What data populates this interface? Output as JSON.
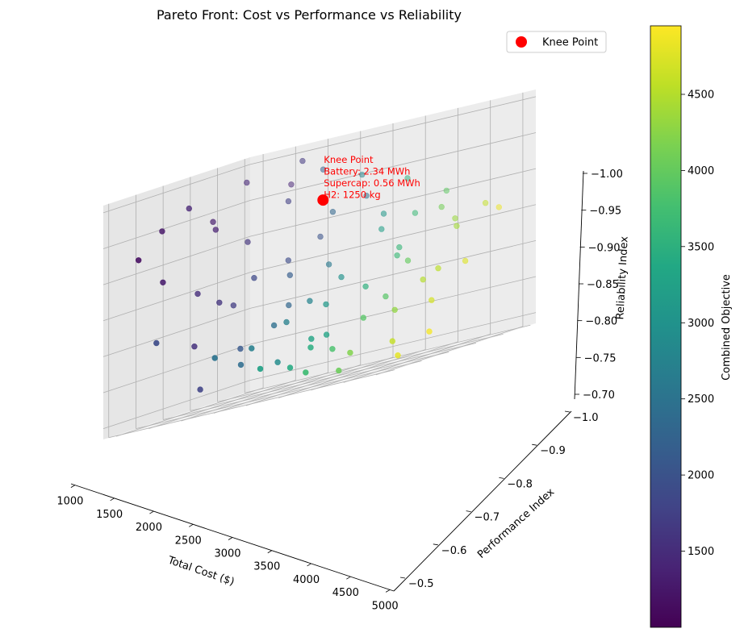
{
  "chart_data": {
    "type": "scatter",
    "projection": "3d",
    "title": "Pareto Front: Cost vs Performance vs Reliability",
    "xlabel": "Total Cost ($)",
    "ylabel": "Performance Index",
    "zlabel": "Reliability Index",
    "xlim": [
      800,
      5200
    ],
    "ylim": [
      -0.48,
      -1.02
    ],
    "zlim": [
      -0.685,
      -1.01
    ],
    "x_ticks": [
      1000,
      1500,
      2000,
      2500,
      3000,
      3500,
      4000,
      4500,
      5000
    ],
    "y_ticks": [
      -0.5,
      -0.6,
      -0.7,
      -0.8,
      -0.9,
      -1.0
    ],
    "z_ticks": [
      -0.7,
      -0.75,
      -0.8,
      -0.85,
      -0.9,
      -0.95,
      -1.0
    ],
    "x_tick_labels": [
      "1000",
      "1500",
      "2000",
      "2500",
      "3000",
      "3500",
      "4000",
      "4500",
      "5000"
    ],
    "y_tick_labels": [
      "−0.5",
      "−0.6",
      "−0.7",
      "−0.8",
      "−0.9",
      "−1.0"
    ],
    "z_tick_labels": [
      "−0.70",
      "−0.75",
      "−0.80",
      "−0.85",
      "−0.90",
      "−0.95",
      "−1.00"
    ],
    "grid": true,
    "legend": {
      "position": "upper-right",
      "entries": [
        "Knee Point"
      ]
    },
    "colorbar": {
      "label": "Combined Objective",
      "range": [
        1000,
        4950
      ],
      "colormap": "viridis",
      "ticks": [
        1500,
        2000,
        2500,
        3000,
        3500,
        4000,
        4500
      ],
      "tick_labels": [
        "1500",
        "2000",
        "2500",
        "3000",
        "3500",
        "4000",
        "4500"
      ]
    },
    "points": [
      {
        "cost": 1050,
        "perf": -0.55,
        "rel": -0.92,
        "obj": 1150
      },
      {
        "cost": 1120,
        "perf": -0.62,
        "rel": -0.95,
        "obj": 1250
      },
      {
        "cost": 1200,
        "perf": -0.7,
        "rel": -0.97,
        "obj": 1400
      },
      {
        "cost": 1300,
        "perf": -0.58,
        "rel": -0.88,
        "obj": 1300
      },
      {
        "cost": 1400,
        "perf": -0.75,
        "rel": -0.93,
        "obj": 1350
      },
      {
        "cost": 1500,
        "perf": -0.66,
        "rel": -0.85,
        "obj": 1500
      },
      {
        "cost": 1600,
        "perf": -0.82,
        "rel": -0.9,
        "obj": 1600
      },
      {
        "cost": 1250,
        "perf": -0.9,
        "rel": -0.98,
        "obj": 1450
      },
      {
        "cost": 1700,
        "perf": -0.6,
        "rel": -0.78,
        "obj": 1550
      },
      {
        "cost": 1800,
        "perf": -0.72,
        "rel": -0.82,
        "obj": 1700
      },
      {
        "cost": 1900,
        "perf": -0.95,
        "rel": -0.99,
        "obj": 1650
      },
      {
        "cost": 2000,
        "perf": -0.55,
        "rel": -0.72,
        "obj": 1800
      },
      {
        "cost": 2100,
        "perf": -0.85,
        "rel": -0.86,
        "obj": 1900
      },
      {
        "cost": 2200,
        "perf": -0.65,
        "rel": -0.76,
        "obj": 2100
      },
      {
        "cost": 2300,
        "perf": -0.92,
        "rel": -0.88,
        "obj": 2000
      },
      {
        "cost": 2400,
        "perf": -0.78,
        "rel": -0.8,
        "obj": 2300
      },
      {
        "cost": 1600,
        "perf": -0.98,
        "rel": -0.96,
        "obj": 1400
      },
      {
        "cost": 2500,
        "perf": -0.58,
        "rel": -0.74,
        "obj": 2400
      },
      {
        "cost": 2600,
        "perf": -0.88,
        "rel": -0.84,
        "obj": 2600
      },
      {
        "cost": 2700,
        "perf": -0.7,
        "rel": -0.78,
        "obj": 2700
      },
      {
        "cost": 2800,
        "perf": -0.97,
        "rel": -0.92,
        "obj": 2500
      },
      {
        "cost": 2900,
        "perf": -0.62,
        "rel": -0.73,
        "obj": 2900
      },
      {
        "cost": 3000,
        "perf": -0.83,
        "rel": -0.82,
        "obj": 3000
      },
      {
        "cost": 3100,
        "perf": -0.75,
        "rel": -0.79,
        "obj": 3100
      },
      {
        "cost": 3200,
        "perf": -0.93,
        "rel": -0.87,
        "obj": 3200
      },
      {
        "cost": 3300,
        "perf": -0.57,
        "rel": -0.72,
        "obj": 3400
      },
      {
        "cost": 3400,
        "perf": -0.68,
        "rel": -0.75,
        "obj": 3300
      },
      {
        "cost": 3500,
        "perf": -0.8,
        "rel": -0.8,
        "obj": 3500
      },
      {
        "cost": 3600,
        "perf": -0.9,
        "rel": -0.84,
        "obj": 3600
      },
      {
        "cost": 3700,
        "perf": -0.63,
        "rel": -0.73,
        "obj": 3800
      },
      {
        "cost": 3800,
        "perf": -0.72,
        "rel": -0.76,
        "obj": 3900
      },
      {
        "cost": 3900,
        "perf": -0.86,
        "rel": -0.82,
        "obj": 4000
      },
      {
        "cost": 4000,
        "perf": -0.96,
        "rel": -0.88,
        "obj": 4100
      },
      {
        "cost": 4100,
        "perf": -0.6,
        "rel": -0.72,
        "obj": 4200
      },
      {
        "cost": 4200,
        "perf": -0.74,
        "rel": -0.76,
        "obj": 4300
      },
      {
        "cost": 4300,
        "perf": -0.82,
        "rel": -0.79,
        "obj": 4500
      },
      {
        "cost": 4400,
        "perf": -0.92,
        "rel": -0.85,
        "obj": 4400
      },
      {
        "cost": 4500,
        "perf": -0.66,
        "rel": -0.72,
        "obj": 4600
      },
      {
        "cost": 4600,
        "perf": -0.78,
        "rel": -0.76,
        "obj": 4700
      },
      {
        "cost": 4700,
        "perf": -0.88,
        "rel": -0.8,
        "obj": 4750
      },
      {
        "cost": 4800,
        "perf": -0.98,
        "rel": -0.86,
        "obj": 4850
      },
      {
        "cost": 4900,
        "perf": -0.7,
        "rel": -0.72,
        "obj": 4900
      },
      {
        "cost": 2050,
        "perf": -0.99,
        "rel": -0.97,
        "obj": 2200
      },
      {
        "cost": 2650,
        "perf": -0.99,
        "rel": -0.95,
        "obj": 2800
      },
      {
        "cost": 3350,
        "perf": -0.99,
        "rel": -0.93,
        "obj": 3500
      },
      {
        "cost": 3950,
        "perf": -0.99,
        "rel": -0.9,
        "obj": 3950
      },
      {
        "cost": 4550,
        "perf": -0.99,
        "rel": -0.87,
        "obj": 4600
      },
      {
        "cost": 1450,
        "perf": -0.52,
        "rel": -0.8,
        "obj": 1900
      },
      {
        "cost": 2350,
        "perf": -0.52,
        "rel": -0.76,
        "obj": 2500
      },
      {
        "cost": 3050,
        "perf": -0.52,
        "rel": -0.73,
        "obj": 3250
      },
      {
        "cost": 3750,
        "perf": -0.52,
        "rel": -0.71,
        "obj": 3700
      },
      {
        "cost": 1850,
        "perf": -0.91,
        "rel": -0.94,
        "obj": 1750
      },
      {
        "cost": 2450,
        "perf": -0.93,
        "rel": -0.91,
        "obj": 2300
      },
      {
        "cost": 3150,
        "perf": -0.95,
        "rel": -0.89,
        "obj": 3100
      },
      {
        "cost": 3550,
        "perf": -0.97,
        "rel": -0.88,
        "obj": 3650
      },
      {
        "cost": 4250,
        "perf": -0.95,
        "rel": -0.86,
        "obj": 4350
      },
      {
        "cost": 2750,
        "perf": -0.56,
        "rel": -0.76,
        "obj": 2700
      },
      {
        "cost": 3450,
        "perf": -0.61,
        "rel": -0.74,
        "obj": 3450
      },
      {
        "cost": 4050,
        "perf": -0.57,
        "rel": -0.7,
        "obj": 4050
      },
      {
        "cost": 1150,
        "perf": -0.8,
        "rel": -0.94,
        "obj": 1300
      },
      {
        "cost": 1750,
        "perf": -0.68,
        "rel": -0.83,
        "obj": 1600
      },
      {
        "cost": 2250,
        "perf": -0.82,
        "rel": -0.84,
        "obj": 2150
      },
      {
        "cost": 2850,
        "perf": -0.75,
        "rel": -0.8,
        "obj": 2750
      },
      {
        "cost": 3250,
        "perf": -0.66,
        "rel": -0.75,
        "obj": 3300
      },
      {
        "cost": 3850,
        "perf": -0.79,
        "rel": -0.78,
        "obj": 3900
      },
      {
        "cost": 4450,
        "perf": -0.84,
        "rel": -0.8,
        "obj": 4550
      },
      {
        "cost": 4750,
        "perf": -0.62,
        "rel": -0.7,
        "obj": 4800
      },
      {
        "cost": 1950,
        "perf": -0.76,
        "rel": -0.85,
        "obj": 1850
      },
      {
        "cost": 2550,
        "perf": -0.69,
        "rel": -0.78,
        "obj": 2450
      },
      {
        "cost": 3650,
        "perf": -0.88,
        "rel": -0.83,
        "obj": 3650
      }
    ],
    "knee_point": {
      "cost": 2341,
      "perf": -0.92,
      "rel": -0.93,
      "label_lines": [
        "Knee Point",
        "Battery: 2.34 MWh",
        "Supercap: 0.56 MWh",
        "H2: 1250 kg"
      ]
    },
    "colors": {
      "knee": "#ff0000",
      "grid": "#b0b0b0",
      "pane": "#f2f2f2"
    }
  }
}
